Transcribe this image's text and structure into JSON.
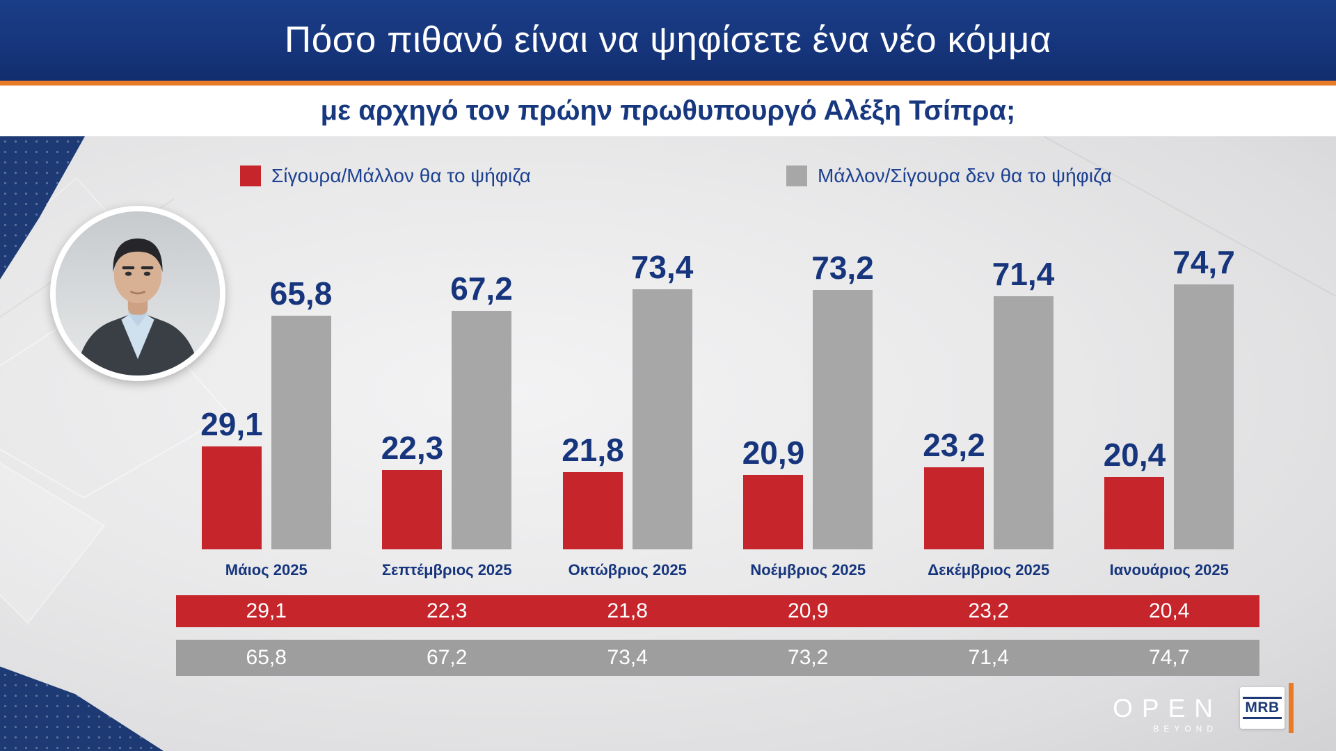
{
  "header": {
    "title": "Πόσο πιθανό είναι να ψηφίσετε ένα νέο κόμμα",
    "subtitle": "με αρχηγό τον πρώην πρωθυπουργό Αλέξη Τσίπρα;"
  },
  "legend": {
    "yes": {
      "label": "Σίγουρα/Μάλλον θα το ψήφιζα",
      "color": "#c5252b"
    },
    "no": {
      "label": "Μάλλον/Σίγουρα δεν θα το ψήφιζα",
      "color": "#a7a7a7"
    }
  },
  "chart_data": {
    "type": "bar",
    "title": "Πόσο πιθανό είναι να ψηφίσετε ένα νέο κόμμα με αρχηγό τον πρώην πρωθυπουργό Αλέξη Τσίπρα;",
    "categories": [
      "Μάιος 2025",
      "Σεπτέμβριος 2025",
      "Οκτώβριος 2025",
      "Νοέμβριος 2025",
      "Δεκέμβριος 2025",
      "Ιανουάριος 2025"
    ],
    "series": [
      {
        "name": "Σίγουρα/Μάλλον θα το ψήφιζα",
        "color": "#c5252b",
        "values": [
          29.1,
          22.3,
          21.8,
          20.9,
          23.2,
          20.4
        ],
        "labels": [
          "29,1",
          "22,3",
          "21,8",
          "20,9",
          "23,2",
          "20,4"
        ]
      },
      {
        "name": "Μάλλον/Σίγουρα δεν θα το ψήφιζα",
        "color": "#a7a7a7",
        "values": [
          65.8,
          67.2,
          73.4,
          73.2,
          71.4,
          74.7
        ],
        "labels": [
          "65,8",
          "67,2",
          "73,4",
          "73,2",
          "71,4",
          "74,7"
        ]
      }
    ],
    "ylim": [
      0,
      100
    ],
    "grid": false,
    "legend_position": "top",
    "value_label_color": "#16357c"
  },
  "summary_table": {
    "rows": [
      {
        "name": "yes-row",
        "color": "#c5252b",
        "values": [
          "29,1",
          "22,3",
          "21,8",
          "20,9",
          "23,2",
          "20,4"
        ]
      },
      {
        "name": "no-row",
        "color": "#9e9e9e",
        "values": [
          "65,8",
          "67,2",
          "73,4",
          "73,2",
          "71,4",
          "74,7"
        ]
      }
    ]
  },
  "footer": {
    "open": "OPEN",
    "open_sub": "BEYOND",
    "mrb": "MRB"
  },
  "colors": {
    "banner_navy": "#16357c",
    "accent_orange": "#e87b28",
    "navy_text": "#16357c",
    "red": "#c5252b",
    "gray": "#a7a7a7",
    "stage_bg": "#e9e9ea"
  }
}
